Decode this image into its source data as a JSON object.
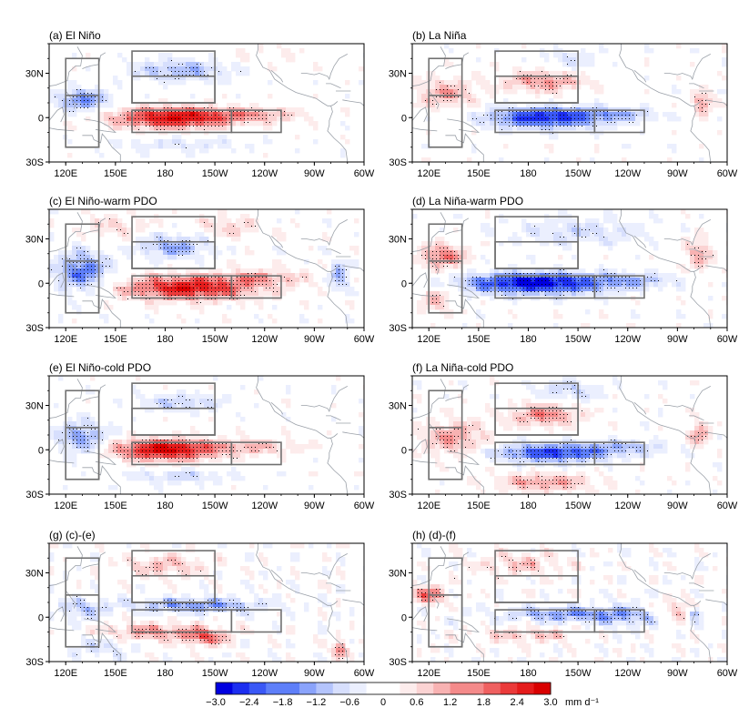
{
  "panels": [
    {
      "label": "(a) El Niño",
      "pattern": "elnino"
    },
    {
      "label": "(b) La Niña",
      "pattern": "lanina"
    },
    {
      "label": "(c) El Niño-warm PDO",
      "pattern": "elnino_warm"
    },
    {
      "label": "(d) La Niña-warm PDO",
      "pattern": "lanina_warm"
    },
    {
      "label": "(e) El Niño-cold PDO",
      "pattern": "elnino_cold"
    },
    {
      "label": "(f) La Niña-cold PDO",
      "pattern": "lanina_cold"
    },
    {
      "label": "(g) (c)-(e)",
      "pattern": "diff_g"
    },
    {
      "label": "(h) (d)-(f)",
      "pattern": "diff_h"
    }
  ],
  "axes": {
    "x_ticks": [
      "120E",
      "150E",
      "180",
      "150W",
      "120W",
      "90W",
      "60W"
    ],
    "x_tick_lons": [
      120,
      150,
      180,
      210,
      240,
      270,
      300
    ],
    "y_ticks": [
      "30N",
      "0",
      "30S"
    ],
    "y_tick_lats": [
      30,
      0,
      -30
    ],
    "lon_range": [
      110,
      300
    ],
    "lat_range": [
      -30,
      50
    ]
  },
  "boxes_lonlat": [
    [
      120,
      140,
      -20,
      40
    ],
    [
      120,
      140,
      -20,
      15
    ],
    [
      160,
      210,
      10,
      45
    ],
    [
      160,
      210,
      10,
      28
    ],
    [
      160,
      220,
      -10,
      5
    ],
    [
      220,
      250,
      -10,
      5
    ]
  ],
  "colorbar": {
    "tick_labels": [
      "−3.0",
      "−2.4",
      "−1.8",
      "−1.2",
      "−0.6",
      "0",
      "0.6",
      "1.2",
      "1.8",
      "2.4",
      "3.0"
    ],
    "unit": "mm d⁻¹",
    "range": [
      -3.0,
      3.0
    ],
    "levels": 20,
    "neg_color": "#0000e0",
    "pos_color": "#e00000"
  },
  "colors": {
    "frame": "#000000",
    "box": "#707070",
    "coast": "#9aa0a8",
    "stipple": "#000000"
  }
}
